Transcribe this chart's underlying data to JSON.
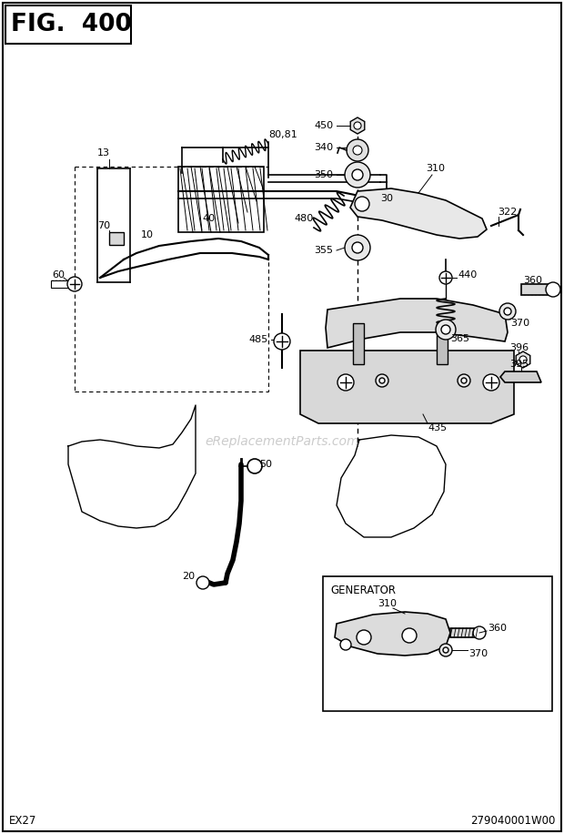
{
  "title": "FIG.  400",
  "bottom_left": "EX27",
  "bottom_right": "279040001W00",
  "bg_color": "#ffffff",
  "watermark": "eReplacementParts.com",
  "fig_w": 620,
  "fig_h": 916
}
